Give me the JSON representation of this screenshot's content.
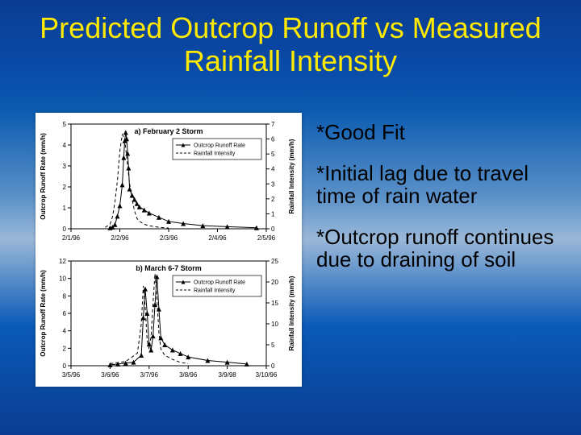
{
  "slide": {
    "title": "Predicted Outcrop Runoff vs Measured Rainfall Intensity",
    "background_gradient": [
      "#0a3d91",
      "#0a4aa8",
      "#0a5ab0",
      "#5a90c8",
      "#9ab8d8",
      "#0a5ab8",
      "#0a3d91"
    ],
    "title_color": "#ffea00",
    "title_fontsize": 36
  },
  "bullets": {
    "b1": "*Good Fit",
    "b2": "*Initial lag due to travel time of rain water",
    "b3": "*Outcrop runoff continues due to draining of soil",
    "color": "#000000",
    "fontsize": 26
  },
  "chart_a": {
    "type": "line",
    "title": "a) February 2 Storm",
    "title_fontsize": 9,
    "background_color": "#ffffff",
    "axis_color": "#000000",
    "font_family": "Arial",
    "tick_fontsize": 8,
    "label_fontsize": 8,
    "xlabel": null,
    "ylabel_left": "Outcrop Runoff Rate (mm/h)",
    "ylabel_right": "Rainfall Intensity (mm/h)",
    "ylim_left": [
      0,
      5
    ],
    "ytick_step_left": 1,
    "ylim_right": [
      0,
      7
    ],
    "ytick_step_right": 1,
    "xticks": [
      "2/1/96",
      "2/2/96",
      "2/3/96",
      "2/4/96",
      "2/5/96"
    ],
    "xrange": [
      0,
      4
    ],
    "legend": {
      "items": [
        {
          "label": "Outcrop Runoff Rate",
          "marker": "triangle",
          "line": "solid"
        },
        {
          "label": "Rainfall Intensity",
          "marker": null,
          "line": "dash"
        }
      ],
      "position": "inside-right",
      "fontsize": 7,
      "border": true
    },
    "series": {
      "runoff": {
        "color": "#000000",
        "line_width": 1,
        "marker": "triangle",
        "marker_size": 3,
        "data": [
          [
            0.8,
            0.05
          ],
          [
            0.85,
            0.08
          ],
          [
            0.9,
            0.2
          ],
          [
            0.95,
            0.6
          ],
          [
            1.0,
            1.1
          ],
          [
            1.05,
            2.1
          ],
          [
            1.08,
            3.4
          ],
          [
            1.1,
            4.2
          ],
          [
            1.12,
            4.6
          ],
          [
            1.14,
            4.3
          ],
          [
            1.16,
            3.6
          ],
          [
            1.18,
            2.9
          ],
          [
            1.2,
            1.9
          ],
          [
            1.25,
            1.6
          ],
          [
            1.3,
            1.4
          ],
          [
            1.35,
            1.2
          ],
          [
            1.4,
            1.05
          ],
          [
            1.5,
            0.9
          ],
          [
            1.6,
            0.75
          ],
          [
            1.8,
            0.55
          ],
          [
            2.0,
            0.35
          ],
          [
            2.3,
            0.25
          ],
          [
            2.7,
            0.15
          ],
          [
            3.2,
            0.1
          ],
          [
            3.8,
            0.05
          ]
        ]
      },
      "rainfall": {
        "color": "#000000",
        "line_width": 1,
        "dash": "4,3",
        "data": [
          [
            0.7,
            0.1
          ],
          [
            0.8,
            0.3
          ],
          [
            0.85,
            0.8
          ],
          [
            0.9,
            1.8
          ],
          [
            0.95,
            3.2
          ],
          [
            1.0,
            5.2
          ],
          [
            1.05,
            6.3
          ],
          [
            1.1,
            6.0
          ],
          [
            1.15,
            4.5
          ],
          [
            1.2,
            3.0
          ],
          [
            1.25,
            2.0
          ],
          [
            1.3,
            1.2
          ],
          [
            1.35,
            0.7
          ],
          [
            1.4,
            0.5
          ],
          [
            1.5,
            0.3
          ],
          [
            1.6,
            0.2
          ],
          [
            1.8,
            0.1
          ],
          [
            2.0,
            0.05
          ]
        ]
      }
    }
  },
  "chart_b": {
    "type": "line",
    "title": "b) March 6-7 Storm",
    "title_fontsize": 9,
    "background_color": "#ffffff",
    "axis_color": "#000000",
    "font_family": "Arial",
    "tick_fontsize": 8,
    "label_fontsize": 8,
    "xlabel": null,
    "ylabel_left": "Outcrop Runoff Rate (mm/h)",
    "ylabel_right": "Rainfall Intensity (mm/h)",
    "ylim_left": [
      0,
      12
    ],
    "ytick_step_left": 2,
    "ylim_right": [
      0,
      25
    ],
    "ytick_step_right": 5,
    "xticks": [
      "3/5/96",
      "3/6/96",
      "3/7/96",
      "3/8/96",
      "3/9/98",
      "3/10/96"
    ],
    "xrange": [
      0,
      5
    ],
    "legend": {
      "items": [
        {
          "label": "Outcrop Runoff Rate",
          "marker": "triangle",
          "line": "solid"
        },
        {
          "label": "Rainfall Intensity",
          "marker": null,
          "line": "dash"
        }
      ],
      "position": "inside-right",
      "fontsize": 7,
      "border": true
    },
    "series": {
      "runoff": {
        "color": "#000000",
        "line_width": 1,
        "marker": "triangle",
        "marker_size": 3,
        "data": [
          [
            1.0,
            0.1
          ],
          [
            1.2,
            0.2
          ],
          [
            1.4,
            0.3
          ],
          [
            1.6,
            0.4
          ],
          [
            1.8,
            1.2
          ],
          [
            1.85,
            5.5
          ],
          [
            1.9,
            8.8
          ],
          [
            1.95,
            6.0
          ],
          [
            2.0,
            2.5
          ],
          [
            2.05,
            1.8
          ],
          [
            2.1,
            3.4
          ],
          [
            2.15,
            7.0
          ],
          [
            2.2,
            10.2
          ],
          [
            2.25,
            6.5
          ],
          [
            2.3,
            3.2
          ],
          [
            2.4,
            2.4
          ],
          [
            2.6,
            1.8
          ],
          [
            2.8,
            1.4
          ],
          [
            3.0,
            1.0
          ],
          [
            3.5,
            0.6
          ],
          [
            4.0,
            0.4
          ],
          [
            4.5,
            0.2
          ]
        ]
      },
      "rainfall": {
        "color": "#000000",
        "line_width": 1,
        "dash": "4,3",
        "data": [
          [
            1.0,
            0.5
          ],
          [
            1.4,
            1.0
          ],
          [
            1.7,
            3.0
          ],
          [
            1.8,
            10.0
          ],
          [
            1.85,
            19.0
          ],
          [
            1.9,
            14.0
          ],
          [
            1.95,
            6.0
          ],
          [
            2.0,
            4.0
          ],
          [
            2.05,
            7.0
          ],
          [
            2.1,
            15.0
          ],
          [
            2.15,
            22.0
          ],
          [
            2.2,
            16.0
          ],
          [
            2.25,
            8.0
          ],
          [
            2.3,
            4.0
          ],
          [
            2.4,
            2.5
          ],
          [
            2.6,
            1.5
          ],
          [
            2.8,
            0.8
          ],
          [
            3.0,
            0.5
          ]
        ]
      }
    }
  }
}
